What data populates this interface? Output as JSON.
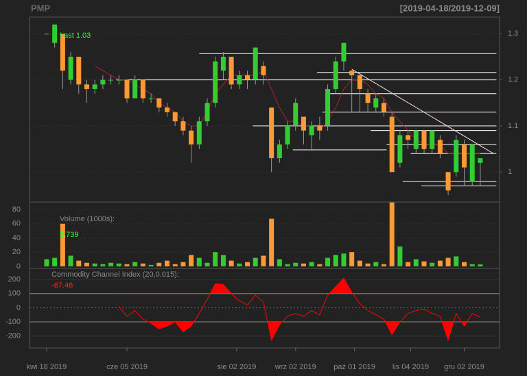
{
  "header": {
    "symbol": "PMP",
    "range": "[2019-04-18/2019-12-09]"
  },
  "chart_data": [
    {
      "type": "candlestick",
      "last_label": "Last",
      "x": [
        0,
        3,
        6,
        9,
        12,
        15,
        18,
        21,
        24,
        27,
        30,
        33,
        36,
        39,
        42,
        45,
        48,
        51,
        54,
        57,
        60,
        63,
        66,
        69,
        72,
        75,
        78,
        81,
        84,
        87,
        90,
        93,
        96,
        99,
        102,
        105,
        108,
        111,
        114,
        117,
        120,
        123,
        126,
        129,
        132,
        135,
        138,
        141,
        144,
        147,
        150,
        153,
        156,
        159,
        162
      ],
      "open": [
        1.3,
        1.28,
        1.3,
        1.2,
        1.25,
        1.19,
        1.18,
        1.19,
        1.2,
        1.2,
        1.2,
        1.16,
        1.2,
        1.16,
        1.16,
        1.14,
        1.13,
        1.11,
        1.09,
        1.06,
        1.11,
        1.15,
        1.22,
        1.25,
        1.19,
        1.21,
        1.2,
        1.23,
        1.14,
        1.03,
        1.06,
        1.1,
        1.12,
        1.08,
        1.1,
        1.1,
        1.18,
        1.24,
        1.22,
        1.21,
        1.17,
        1.14,
        1.15,
        1.12,
        1.02,
        1.08,
        1.05,
        1.09,
        1.05,
        1.07,
        1.0,
        1.0,
        1.06,
        0.98,
        1.02
      ],
      "high": [
        1.3,
        1.32,
        1.3,
        1.26,
        1.25,
        1.2,
        1.2,
        1.21,
        1.21,
        1.21,
        1.2,
        1.21,
        1.2,
        1.17,
        1.16,
        1.15,
        1.13,
        1.12,
        1.1,
        1.12,
        1.16,
        1.25,
        1.26,
        1.25,
        1.22,
        1.22,
        1.27,
        1.24,
        1.14,
        1.07,
        1.11,
        1.16,
        1.12,
        1.11,
        1.12,
        1.19,
        1.25,
        1.28,
        1.22,
        1.21,
        1.18,
        1.17,
        1.16,
        1.13,
        1.09,
        1.09,
        1.09,
        1.09,
        1.09,
        1.08,
        1.0,
        1.08,
        1.07,
        1.06,
        1.03
      ],
      "low": [
        1.3,
        1.27,
        1.18,
        1.19,
        1.17,
        1.15,
        1.17,
        1.18,
        1.19,
        1.19,
        1.15,
        1.16,
        1.15,
        1.15,
        1.13,
        1.12,
        1.1,
        1.08,
        1.02,
        1.05,
        1.1,
        1.14,
        1.2,
        1.18,
        1.18,
        1.18,
        1.19,
        1.19,
        1.0,
        1.02,
        1.05,
        1.09,
        1.06,
        1.05,
        1.07,
        1.09,
        1.17,
        1.22,
        1.13,
        1.13,
        1.13,
        1.13,
        1.12,
        1.0,
        1.01,
        1.05,
        1.04,
        1.04,
        1.04,
        1.03,
        0.95,
        0.99,
        0.97,
        0.97,
        0.97
      ],
      "close": [
        1.3,
        1.32,
        1.22,
        1.25,
        1.19,
        1.18,
        1.19,
        1.2,
        1.2,
        1.2,
        1.16,
        1.2,
        1.16,
        1.16,
        1.14,
        1.13,
        1.11,
        1.09,
        1.06,
        1.11,
        1.15,
        1.24,
        1.25,
        1.19,
        1.21,
        1.2,
        1.27,
        1.21,
        1.03,
        1.06,
        1.1,
        1.15,
        1.09,
        1.1,
        1.09,
        1.18,
        1.24,
        1.28,
        1.21,
        1.18,
        1.15,
        1.16,
        1.13,
        1.0,
        1.08,
        1.07,
        1.09,
        1.05,
        1.09,
        1.04,
        0.96,
        1.07,
        1.01,
        1.06,
        1.03
      ],
      "up_color": "#33cc33",
      "down_color": "#ff9933",
      "ma": {
        "color": "#aa2222",
        "values": [
          null,
          null,
          null,
          null,
          null,
          null,
          1.23,
          1.22,
          1.21,
          1.2,
          1.2,
          1.19,
          1.18,
          1.17,
          1.15,
          1.14,
          1.13,
          1.11,
          1.1,
          1.1,
          1.13,
          1.17,
          1.19,
          1.21,
          1.21,
          1.21,
          1.21,
          1.22,
          1.18,
          1.14,
          1.11,
          1.11,
          1.1,
          1.1,
          1.09,
          1.11,
          1.14,
          1.18,
          1.2,
          1.2,
          1.19,
          1.17,
          1.16,
          1.13,
          1.11,
          1.09,
          1.07,
          1.06,
          1.06,
          1.06,
          1.04,
          1.04,
          1.04,
          1.04,
          1.04
        ]
      },
      "levels": [
        {
          "y": 1.257,
          "x": [
            57,
            168
          ]
        },
        {
          "y": 1.216,
          "x": [
            101,
            168
          ]
        },
        {
          "y": 1.2,
          "x": [
            26,
            168
          ]
        },
        {
          "y": 1.17,
          "x": [
            105,
            168
          ]
        },
        {
          "y": 1.13,
          "x": [
            103,
            168
          ]
        },
        {
          "y": 1.1,
          "x": [
            77,
            168
          ]
        },
        {
          "y": 1.09,
          "x": [
            121,
            168
          ]
        },
        {
          "y": 1.06,
          "x": [
            127,
            168
          ]
        },
        {
          "y": 1.048,
          "x": [
            92,
            127
          ]
        },
        {
          "y": 1.04,
          "x": [
            136,
            168
          ]
        },
        {
          "y": 0.98,
          "x": [
            133,
            168
          ]
        },
        {
          "y": 0.97,
          "x": [
            140,
            168
          ]
        }
      ],
      "trendline": {
        "x": [
          114,
          167
        ],
        "y": [
          1.223,
          1.04
        ]
      },
      "xlim": [
        -6.4,
        169.2
      ],
      "ylim": [
        0.935,
        1.336
      ],
      "yticks": [
        1.0,
        1.1,
        1.2,
        1.3
      ]
    },
    {
      "type": "bar",
      "title": "Volume (1000s):",
      "last_label": "2,739",
      "values": [
        10,
        12,
        60,
        15,
        8,
        5,
        4,
        3,
        5,
        4,
        3,
        6,
        4,
        2,
        5,
        8,
        3,
        6,
        16,
        12,
        5,
        20,
        16,
        8,
        4,
        6,
        12,
        15,
        67,
        10,
        3,
        5,
        4,
        6,
        3,
        12,
        16,
        18,
        20,
        8,
        4,
        6,
        3,
        90,
        28,
        6,
        10,
        7,
        5,
        8,
        12,
        14,
        6,
        3,
        2.739
      ],
      "ylim": [
        -3,
        90.6
      ],
      "yticks": [
        0,
        20,
        40,
        60,
        80
      ]
    },
    {
      "type": "line",
      "title": "Commodity Channel Index (20,0.015):",
      "color": "#ff0000",
      "values": [
        null,
        null,
        null,
        null,
        null,
        null,
        null,
        null,
        null,
        10,
        -60,
        -20,
        -80,
        -110,
        -150,
        -130,
        -100,
        -170,
        -130,
        -40,
        60,
        170,
        165,
        100,
        50,
        20,
        90,
        40,
        -230,
        -120,
        -60,
        -40,
        -60,
        -20,
        -50,
        90,
        150,
        210,
        110,
        30,
        -20,
        -50,
        -80,
        -190,
        -100,
        -40,
        -20,
        -10,
        -40,
        -60,
        -230,
        -40,
        -130,
        -40,
        -67.46
      ],
      "thresholds": [
        100,
        -100
      ],
      "ylim": [
        -284,
        278
      ],
      "yticks": [
        -200,
        -100,
        0,
        100,
        200
      ],
      "xticks": [
        {
          "value": 0,
          "label": "kwi 18 2019"
        },
        {
          "value": 30,
          "label": "cze 05 2019"
        },
        {
          "value": 71,
          "label": "sie 02 2019"
        },
        {
          "value": 93,
          "label": "wrz 02 2019"
        },
        {
          "value": 115,
          "label": "paź 01 2019"
        },
        {
          "value": 136,
          "label": "lis 04 2019"
        },
        {
          "value": 156,
          "label": "gru 02 2019"
        }
      ]
    }
  ]
}
